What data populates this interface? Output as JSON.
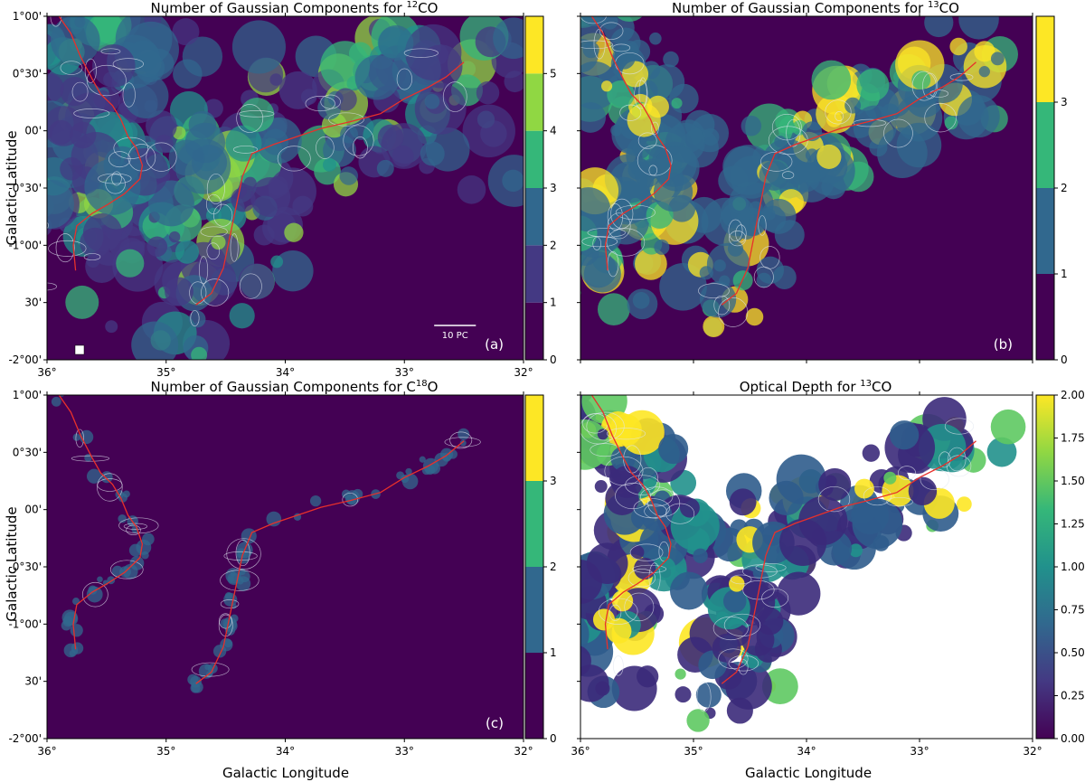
{
  "figure": {
    "ylabel": "Galactic Latitude",
    "xlabel": "Galactic Longitude"
  },
  "chart_data": [
    {
      "type": "heatmap",
      "panel_label": "(a)",
      "title_prefix": "Number of Gaussian Components for ",
      "title_sup": "12",
      "title_suffix": "CO",
      "xlim": [
        36,
        32
      ],
      "ylim": [
        -2,
        1
      ],
      "xticks": [
        "36°",
        "35°",
        "34°",
        "33°",
        "32°"
      ],
      "yticks": [
        "1°00'",
        "0°30'",
        "00'",
        "-0°30'",
        "-1°00'",
        "30'",
        "-2°00'"
      ],
      "colorbar": {
        "type": "discrete",
        "min": 0,
        "max": 6,
        "ticks": [
          "0",
          "1",
          "2",
          "3",
          "4",
          "5"
        ]
      },
      "scalebar": "10 PC",
      "beam_marker": true,
      "filament": true,
      "contours": true
    },
    {
      "type": "heatmap",
      "panel_label": "(b)",
      "title_prefix": "Number of Gaussian Components for ",
      "title_sup": "13",
      "title_suffix": "CO",
      "xlim": [
        36,
        32
      ],
      "ylim": [
        -2,
        1
      ],
      "colorbar": {
        "type": "discrete",
        "min": 0,
        "max": 4,
        "ticks": [
          "0",
          "1",
          "2",
          "3"
        ]
      },
      "filament": true,
      "contours": true
    },
    {
      "type": "heatmap",
      "panel_label": "(c)",
      "title_prefix": "Number of Gaussian Components for C",
      "title_sup": "18",
      "title_suffix": "O",
      "xlim": [
        36,
        32
      ],
      "ylim": [
        -2,
        1
      ],
      "xticks": [
        "36°",
        "35°",
        "34°",
        "33°",
        "32°"
      ],
      "yticks": [
        "1°00'",
        "0°30'",
        "00'",
        "-0°30'",
        "-1°00'",
        "30'",
        "-2°00'"
      ],
      "colorbar": {
        "type": "discrete",
        "min": 0,
        "max": 4,
        "ticks": [
          "0",
          "1",
          "2",
          "3"
        ]
      },
      "filament": true,
      "contours": true
    },
    {
      "type": "heatmap",
      "panel_label": "(d)",
      "title_prefix": "Optical Depth for ",
      "title_sup": "13",
      "title_suffix": "CO",
      "xlim": [
        36,
        32
      ],
      "ylim": [
        -2,
        1
      ],
      "xticks": [
        "36°",
        "35°",
        "34°",
        "33°",
        "32°"
      ],
      "colorbar": {
        "type": "continuous",
        "min": 0,
        "max": 2,
        "ticks": [
          "0.00",
          "0.25",
          "0.50",
          "0.75",
          "1.00",
          "1.25",
          "1.50",
          "1.75",
          "2.00"
        ]
      },
      "filament": true,
      "contours": true
    }
  ],
  "filament_path": [
    [
      35.9,
      1.0
    ],
    [
      35.8,
      0.85
    ],
    [
      35.72,
      0.65
    ],
    [
      35.62,
      0.45
    ],
    [
      35.55,
      0.32
    ],
    [
      35.45,
      0.22
    ],
    [
      35.38,
      0.1
    ],
    [
      35.32,
      -0.05
    ],
    [
      35.25,
      -0.15
    ],
    [
      35.2,
      -0.3
    ],
    [
      35.22,
      -0.42
    ],
    [
      35.35,
      -0.55
    ],
    [
      35.5,
      -0.65
    ],
    [
      35.62,
      -0.72
    ],
    [
      35.75,
      -0.83
    ],
    [
      35.78,
      -1.0
    ],
    [
      35.76,
      -1.22
    ],
    [
      34.75,
      -1.52
    ],
    [
      34.62,
      -1.42
    ],
    [
      34.52,
      -1.2
    ],
    [
      34.48,
      -1.0
    ],
    [
      34.44,
      -0.8
    ],
    [
      34.4,
      -0.6
    ],
    [
      34.36,
      -0.4
    ],
    [
      34.28,
      -0.2
    ],
    [
      34.1,
      -0.12
    ],
    [
      33.9,
      -0.05
    ],
    [
      33.7,
      0.02
    ],
    [
      33.45,
      0.08
    ],
    [
      33.2,
      0.15
    ],
    [
      33.0,
      0.28
    ],
    [
      32.8,
      0.38
    ],
    [
      32.65,
      0.47
    ],
    [
      32.5,
      0.6
    ]
  ],
  "colors": {
    "viridis_discrete_6": [
      "#440154",
      "#443983",
      "#31688e",
      "#21918c",
      "#35b779",
      "#90d743",
      "#fde725"
    ],
    "viridis_discrete_4": [
      "#440154",
      "#31688e",
      "#35b779",
      "#fde725"
    ],
    "filament": "#e8302b",
    "contour": "#dfe6f0"
  }
}
